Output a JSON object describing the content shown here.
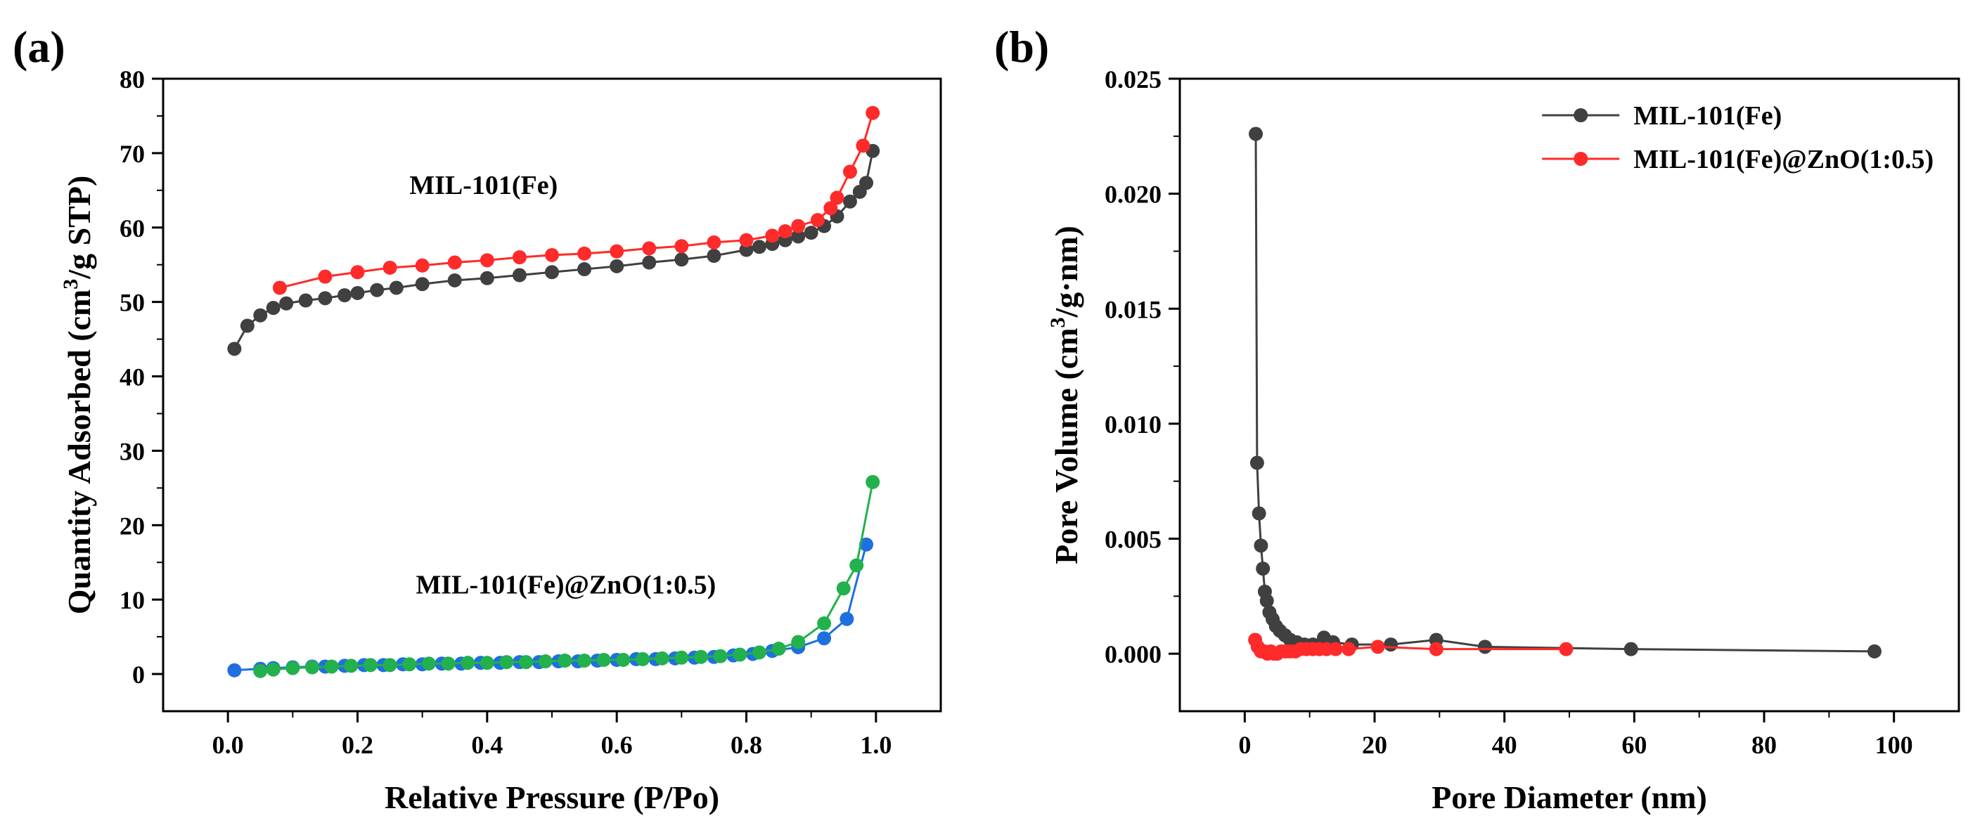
{
  "chart_data": [
    {
      "type": "line",
      "panel_label": "(a)",
      "xlabel": "Relative Pressure (P/Po)",
      "ylabel": "Quantity Adsorbed (cm³/g STP)",
      "ylabel_parts": {
        "pre": "Quantity Adsorbed (cm",
        "sup": "3",
        "post": "/g STP)"
      },
      "xlim": [
        -0.1,
        1.1
      ],
      "ylim": [
        -5,
        80
      ],
      "xticks": [
        "0.0",
        "0.2",
        "0.4",
        "0.6",
        "0.8",
        "1.0"
      ],
      "xtick_values": [
        0.0,
        0.2,
        0.4,
        0.6,
        0.8,
        1.0
      ],
      "yticks": [
        "0",
        "10",
        "20",
        "30",
        "40",
        "50",
        "60",
        "70",
        "80"
      ],
      "ytick_values": [
        0,
        10,
        20,
        30,
        40,
        50,
        60,
        70,
        80
      ],
      "grid": false,
      "annotations": [
        {
          "text": "MIL-101(Fe)",
          "x": 0.28,
          "y": 64.5
        },
        {
          "text": "MIL-101(Fe)@ZnO(1:0.5)",
          "x": 0.29,
          "y": 10.8
        }
      ],
      "series": [
        {
          "color": "#404040",
          "x": [
            0.01,
            0.03,
            0.05,
            0.07,
            0.09,
            0.12,
            0.15,
            0.18,
            0.2,
            0.23,
            0.26,
            0.3,
            0.35,
            0.4,
            0.45,
            0.5,
            0.55,
            0.6,
            0.65,
            0.7,
            0.75,
            0.8,
            0.82,
            0.84,
            0.86,
            0.88,
            0.9,
            0.92,
            0.94,
            0.96,
            0.975,
            0.985,
            0.995
          ],
          "y": [
            43.7,
            46.8,
            48.2,
            49.2,
            49.8,
            50.2,
            50.5,
            50.9,
            51.2,
            51.6,
            51.9,
            52.4,
            52.9,
            53.2,
            53.6,
            54.0,
            54.4,
            54.8,
            55.3,
            55.7,
            56.2,
            57.0,
            57.4,
            57.8,
            58.3,
            58.8,
            59.3,
            60.2,
            61.5,
            63.5,
            64.8,
            66.0,
            70.3
          ]
        },
        {
          "color": "#ff2a2a",
          "x": [
            0.995,
            0.98,
            0.96,
            0.94,
            0.93,
            0.91,
            0.88,
            0.86,
            0.84,
            0.8,
            0.75,
            0.7,
            0.65,
            0.6,
            0.55,
            0.5,
            0.45,
            0.4,
            0.35,
            0.3,
            0.25,
            0.2,
            0.15,
            0.08
          ],
          "y": [
            75.4,
            71.0,
            67.5,
            64.0,
            62.6,
            61.0,
            60.2,
            59.5,
            58.9,
            58.3,
            58.0,
            57.5,
            57.2,
            56.8,
            56.5,
            56.3,
            56.0,
            55.6,
            55.3,
            54.9,
            54.6,
            54.0,
            53.4,
            51.9
          ]
        },
        {
          "color": "#1f6fe0",
          "x": [
            0.01,
            0.05,
            0.07,
            0.1,
            0.13,
            0.15,
            0.18,
            0.21,
            0.24,
            0.27,
            0.3,
            0.33,
            0.36,
            0.39,
            0.42,
            0.45,
            0.48,
            0.51,
            0.54,
            0.57,
            0.6,
            0.63,
            0.66,
            0.69,
            0.72,
            0.75,
            0.78,
            0.81,
            0.84,
            0.88,
            0.92,
            0.955,
            0.985
          ],
          "y": [
            0.5,
            0.7,
            0.8,
            0.9,
            1.0,
            1.0,
            1.1,
            1.2,
            1.2,
            1.3,
            1.3,
            1.4,
            1.4,
            1.5,
            1.5,
            1.6,
            1.6,
            1.7,
            1.7,
            1.8,
            1.9,
            2.0,
            2.0,
            2.1,
            2.2,
            2.3,
            2.5,
            2.7,
            3.1,
            3.6,
            4.8,
            7.4,
            17.4
          ]
        },
        {
          "color": "#22b14c",
          "x": [
            0.995,
            0.97,
            0.95,
            0.92,
            0.88,
            0.85,
            0.82,
            0.79,
            0.76,
            0.73,
            0.7,
            0.67,
            0.64,
            0.61,
            0.58,
            0.55,
            0.52,
            0.49,
            0.46,
            0.43,
            0.4,
            0.37,
            0.34,
            0.31,
            0.28,
            0.25,
            0.22,
            0.19,
            0.16,
            0.13,
            0.1,
            0.07,
            0.05
          ],
          "y": [
            25.8,
            14.6,
            11.5,
            6.8,
            4.3,
            3.4,
            2.9,
            2.6,
            2.4,
            2.3,
            2.2,
            2.1,
            2.0,
            1.9,
            1.9,
            1.8,
            1.8,
            1.7,
            1.6,
            1.6,
            1.5,
            1.5,
            1.4,
            1.4,
            1.3,
            1.2,
            1.2,
            1.1,
            1.0,
            0.9,
            0.8,
            0.6,
            0.4
          ]
        }
      ]
    },
    {
      "type": "line",
      "panel_label": "(b)",
      "xlabel": "Pore Diameter (nm)",
      "ylabel": "Pore Volume (cm³/g·nm)",
      "ylabel_parts": {
        "pre": "Pore Volume (cm",
        "sup": "3",
        "post": "/g·nm)"
      },
      "xlim": [
        -10,
        110
      ],
      "ylim": [
        -0.0025,
        0.025
      ],
      "xticks": [
        "0",
        "20",
        "40",
        "60",
        "80",
        "100"
      ],
      "xtick_values": [
        0,
        20,
        40,
        60,
        80,
        100
      ],
      "yticks": [
        "0.000",
        "0.005",
        "0.010",
        "0.015",
        "0.020",
        "0.025"
      ],
      "ytick_values": [
        0,
        0.005,
        0.01,
        0.015,
        0.02,
        0.025
      ],
      "grid": false,
      "legend": {
        "position": "top-right",
        "entries": [
          "MIL-101(Fe)",
          "MIL-101(Fe)@ZnO(1:0.5)"
        ]
      },
      "series": [
        {
          "name": "MIL-101(Fe)",
          "color": "#404040",
          "x": [
            1.7,
            1.9,
            2.2,
            2.5,
            2.8,
            3.1,
            3.4,
            3.8,
            4.3,
            4.8,
            5.4,
            6.2,
            7.0,
            8.0,
            9.2,
            10.5,
            12.2,
            13.6,
            16.5,
            22.5,
            29.5,
            37.0,
            59.5,
            97.0
          ],
          "y": [
            0.0226,
            0.0083,
            0.0061,
            0.0047,
            0.0037,
            0.0027,
            0.0023,
            0.0018,
            0.0015,
            0.0012,
            0.001,
            0.0008,
            0.0006,
            0.0005,
            0.0004,
            0.0004,
            0.0007,
            0.0005,
            0.0004,
            0.0004,
            0.0006,
            0.0003,
            0.0002,
            0.0001
          ]
        },
        {
          "name": "MIL-101(Fe)@ZnO(1:0.5)",
          "color": "#ff2a2a",
          "x": [
            1.6,
            2.0,
            2.5,
            3.0,
            3.5,
            4.0,
            4.5,
            5.0,
            5.6,
            6.3,
            7.0,
            7.8,
            8.6,
            9.5,
            10.5,
            11.5,
            12.6,
            14.0,
            16.0,
            20.5,
            29.5,
            49.5
          ],
          "y": [
            0.0006,
            0.0003,
            0.0001,
            0.0001,
            0.0,
            0.0001,
            0.0,
            0.0,
            0.0001,
            0.0001,
            0.0001,
            0.0001,
            0.0002,
            0.0002,
            0.0002,
            0.0002,
            0.0002,
            0.0002,
            0.0002,
            0.0003,
            0.0002,
            0.0002
          ]
        }
      ]
    }
  ]
}
